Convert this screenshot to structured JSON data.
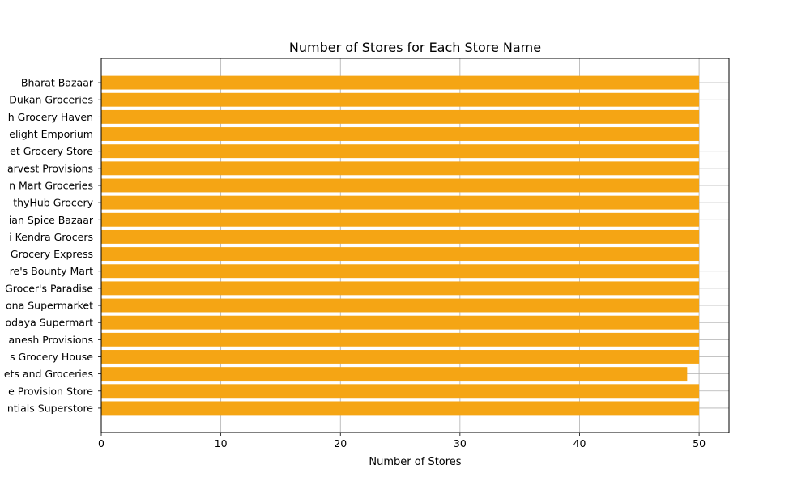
{
  "chart_data": {
    "type": "bar",
    "orientation": "horizontal",
    "title": "Number of Stores for Each Store Name",
    "xlabel": "Number of Stores",
    "ylabel": "",
    "xlim": [
      0,
      52.5
    ],
    "xticks": [
      0,
      10,
      20,
      30,
      40,
      50
    ],
    "grid": true,
    "bar_color": "#F5A514",
    "categories": [
      "Bharat Bazaar",
      "Dukan Groceries",
      "h Grocery Haven",
      "elight Emporium",
      "et Grocery Store",
      "arvest Provisions",
      "n Mart Groceries",
      "thyHub Grocery ",
      "ian Spice Bazaar",
      "i Kendra Grocers",
      " Grocery Express",
      "re's Bounty Mart",
      "Grocer's Paradise",
      "ona Supermarket",
      "odaya Supermart",
      "anesh Provisions",
      "s Grocery House",
      "ets and Groceries",
      "e Provision Store",
      "ntials Superstore"
    ],
    "values": [
      50,
      50,
      50,
      50,
      50,
      50,
      50,
      50,
      50,
      50,
      50,
      50,
      50,
      50,
      50,
      50,
      50,
      49,
      50,
      50
    ]
  }
}
